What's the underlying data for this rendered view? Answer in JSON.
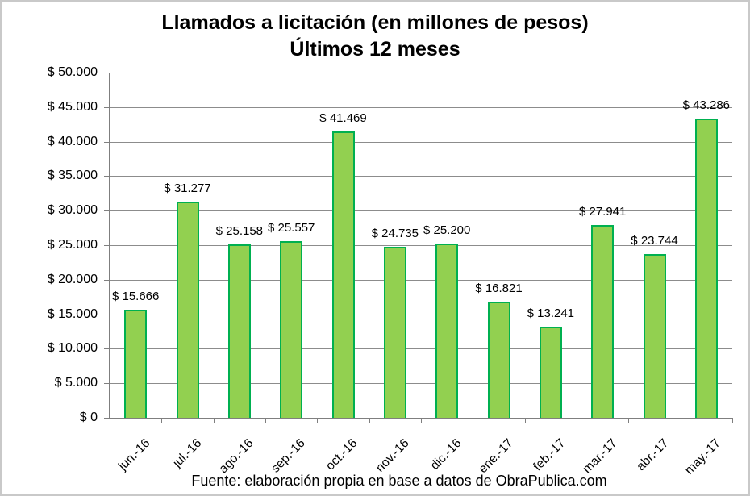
{
  "title": {
    "line1": "Llamados a licitación (en millones de pesos)",
    "line2": "Últimos 12 meses"
  },
  "footer": {
    "source_text": "Fuente: elaboración propia en base a datos de ObraPublica.com"
  },
  "colors": {
    "bar_fill": "#92d050",
    "bar_border": "#00b050",
    "gridline": "#8c8c8c",
    "axis": "#7f7f7f",
    "frame_border": "#c9c9c9",
    "text": "#000000"
  },
  "chart_data": {
    "type": "bar",
    "title": "Llamados a licitación (en millones de pesos)",
    "subtitle": "Últimos 12 meses",
    "categories": [
      "jun.-16",
      "jul.-16",
      "ago.-16",
      "sep.-16",
      "oct.-16",
      "nov.-16",
      "dic.-16",
      "ene.-17",
      "feb.-17",
      "mar.-17",
      "abr.-17",
      "may.-17"
    ],
    "values": [
      15666,
      31277,
      25158,
      25557,
      41469,
      24735,
      25200,
      16821,
      13241,
      27941,
      23744,
      43286
    ],
    "value_labels": [
      "$ 15.666",
      "$ 31.277",
      "$ 25.158",
      "$ 25.557",
      "$ 41.469",
      "$ 24.735",
      "$ 25.200",
      "$ 16.821",
      "$ 13.241",
      "$ 27.941",
      "$ 23.744",
      "$ 43.286"
    ],
    "xlabel": "",
    "ylabel": "",
    "ylim": [
      0,
      50000
    ],
    "y_step": 5000,
    "y_tick_labels_top_to_bottom": [
      "$ 50.000",
      "$ 45.000",
      "$ 40.000",
      "$ 35.000",
      "$ 30.000",
      "$ 25.000",
      "$ 20.000",
      "$ 15.000",
      "$ 10.000",
      "$ 5.000",
      "$ 0"
    ],
    "grid": true,
    "legend": false,
    "source_note": "Fuente: elaboración propia en base a datos de ObraPublica.com"
  }
}
